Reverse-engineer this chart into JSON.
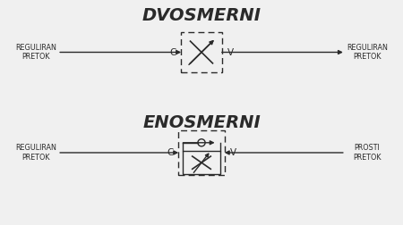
{
  "title1": "DVOSMERNI",
  "title2": "ENOSMERNI",
  "label_reg_pretok": "REGULIRAN\nPRETOK",
  "label_prosti_pretok": "PROSTI\nPRETOK",
  "label_c": "C",
  "label_v": "V",
  "bg_color": "#f0f0f0",
  "line_color": "#2a2a2a",
  "text_color": "#2a2a2a",
  "title_fontsize": 14,
  "label_fontsize": 5.8,
  "cv_fontsize": 7.5
}
